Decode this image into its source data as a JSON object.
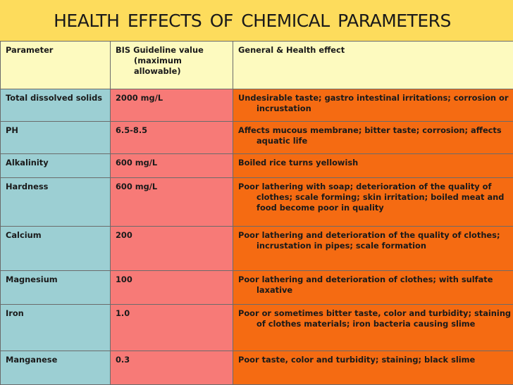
{
  "slide": {
    "title": "HEALTH EFFECTS OF CHEMICAL PARAMETERS"
  },
  "table": {
    "headers": [
      "Parameter",
      "BIS Guideline value (maximum allowable)",
      "General & Health effect"
    ],
    "rows": [
      [
        "Total dissolved solids",
        "2000 mg/L",
        "Undesirable taste; gastro intestinal irritations; corrosion or incrustation"
      ],
      [
        "PH",
        "6.5-8.5",
        "Affects mucous membrane; bitter taste; corrosion; affects aquatic life"
      ],
      [
        "Alkalinity",
        "600 mg/L",
        "Boiled rice turns yellowish"
      ],
      [
        "Hardness",
        "600 mg/L",
        "Poor lathering with soap; deterioration of the quality of clothes; scale forming; skin irritation; boiled meat and food become poor in quality"
      ],
      [
        "Calcium",
        "200",
        "Poor lathering and deterioration of the quality of clothes; incrustation in pipes; scale formation"
      ],
      [
        "Magnesium",
        "100",
        "Poor lathering and deterioration of clothes; with sulfate laxative"
      ],
      [
        "Iron",
        "1.0",
        "Poor or sometimes bitter taste, color and turbidity; staining of clothes materials; iron bacteria causing slime"
      ],
      [
        "Manganese",
        "0.3",
        "Poor taste, color and turbidity; staining; black slime"
      ]
    ]
  },
  "colors": {
    "background": "#fddc5c",
    "header_row": "#fdfabf",
    "parameter_column": "#9ccfd3",
    "guideline_column": "#f77a77",
    "effect_column": "#f56b12"
  }
}
